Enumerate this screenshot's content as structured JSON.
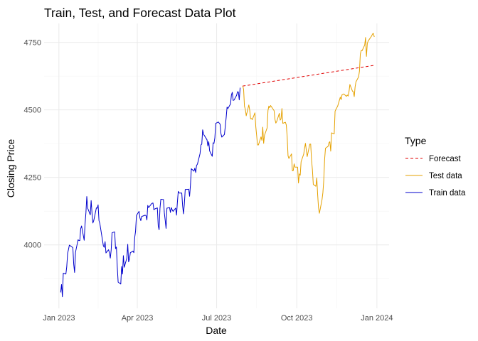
{
  "chart_data": {
    "type": "line",
    "title": "Train, Test, and Forecast Data Plot",
    "xlabel": "Date",
    "ylabel": "Closing Price",
    "x_type": "date",
    "xlim": [
      "2022-12-15",
      "2024-01-15"
    ],
    "ylim": [
      3765,
      4820
    ],
    "x_ticks": [
      {
        "value": "2023-01-01",
        "label": "Jan 2023"
      },
      {
        "value": "2023-04-01",
        "label": "Apr 2023"
      },
      {
        "value": "2023-07-01",
        "label": "Jul 2023"
      },
      {
        "value": "2023-10-01",
        "label": "Oct 2023"
      },
      {
        "value": "2024-01-01",
        "label": "Jan 2024"
      }
    ],
    "x_minor": [
      "2023-02-15",
      "2023-05-16",
      "2023-08-16",
      "2023-11-16"
    ],
    "y_ticks": [
      {
        "value": 4000,
        "label": "4000"
      },
      {
        "value": 4250,
        "label": "4250"
      },
      {
        "value": 4500,
        "label": "4500"
      },
      {
        "value": 4750,
        "label": "4750"
      }
    ],
    "y_minor": [
      3875,
      4125,
      4375,
      4625
    ],
    "grid": true,
    "legend": {
      "title": "Type",
      "placement": "right",
      "entries": [
        {
          "label": "Forecast",
          "color": "#e00000",
          "dash": "dashed"
        },
        {
          "label": "Test data",
          "color": "#e5a100",
          "dash": "solid"
        },
        {
          "label": "Train data",
          "color": "#0000cc",
          "dash": "solid"
        }
      ]
    },
    "series": [
      {
        "name": "Train data",
        "color": "#0000cc",
        "points": [
          [
            "2023-01-03",
            3824
          ],
          [
            "2023-01-04",
            3853
          ],
          [
            "2023-01-05",
            3808
          ],
          [
            "2023-01-06",
            3895
          ],
          [
            "2023-01-09",
            3892
          ],
          [
            "2023-01-10",
            3919
          ],
          [
            "2023-01-11",
            3969
          ],
          [
            "2023-01-12",
            3983
          ],
          [
            "2023-01-13",
            3999
          ],
          [
            "2023-01-17",
            3990
          ],
          [
            "2023-01-18",
            3928
          ],
          [
            "2023-01-19",
            3898
          ],
          [
            "2023-01-20",
            3972
          ],
          [
            "2023-01-23",
            4019
          ],
          [
            "2023-01-24",
            4016
          ],
          [
            "2023-01-25",
            4016
          ],
          [
            "2023-01-26",
            4060
          ],
          [
            "2023-01-27",
            4070
          ],
          [
            "2023-01-30",
            4017
          ],
          [
            "2023-01-31",
            4077
          ],
          [
            "2023-02-01",
            4119
          ],
          [
            "2023-02-02",
            4179
          ],
          [
            "2023-02-03",
            4136
          ],
          [
            "2023-02-06",
            4111
          ],
          [
            "2023-02-07",
            4164
          ],
          [
            "2023-02-08",
            4117
          ],
          [
            "2023-02-09",
            4081
          ],
          [
            "2023-02-10",
            4090
          ],
          [
            "2023-02-13",
            4137
          ],
          [
            "2023-02-14",
            4136
          ],
          [
            "2023-02-15",
            4148
          ],
          [
            "2023-02-16",
            4090
          ],
          [
            "2023-02-17",
            4079
          ],
          [
            "2023-02-21",
            3997
          ],
          [
            "2023-02-22",
            3991
          ],
          [
            "2023-02-23",
            4012
          ],
          [
            "2023-02-24",
            3970
          ],
          [
            "2023-02-27",
            3982
          ],
          [
            "2023-02-28",
            3970
          ],
          [
            "2023-03-01",
            3951
          ],
          [
            "2023-03-02",
            3981
          ],
          [
            "2023-03-03",
            4045
          ],
          [
            "2023-03-06",
            4048
          ],
          [
            "2023-03-07",
            3986
          ],
          [
            "2023-03-08",
            3992
          ],
          [
            "2023-03-09",
            3918
          ],
          [
            "2023-03-10",
            3862
          ],
          [
            "2023-03-13",
            3855
          ],
          [
            "2023-03-14",
            3920
          ],
          [
            "2023-03-15",
            3892
          ],
          [
            "2023-03-16",
            3960
          ],
          [
            "2023-03-17",
            3917
          ],
          [
            "2023-03-20",
            3951
          ],
          [
            "2023-03-21",
            4002
          ],
          [
            "2023-03-22",
            3937
          ],
          [
            "2023-03-23",
            3948
          ],
          [
            "2023-03-24",
            3971
          ],
          [
            "2023-03-27",
            3977
          ],
          [
            "2023-03-28",
            3971
          ],
          [
            "2023-03-29",
            4027
          ],
          [
            "2023-03-30",
            4051
          ],
          [
            "2023-03-31",
            4109
          ],
          [
            "2023-04-03",
            4124
          ],
          [
            "2023-04-04",
            4100
          ],
          [
            "2023-04-05",
            4090
          ],
          [
            "2023-04-06",
            4105
          ],
          [
            "2023-04-10",
            4110
          ],
          [
            "2023-04-11",
            4108
          ],
          [
            "2023-04-12",
            4092
          ],
          [
            "2023-04-13",
            4146
          ],
          [
            "2023-04-14",
            4138
          ],
          [
            "2023-04-17",
            4151
          ],
          [
            "2023-04-18",
            4154
          ],
          [
            "2023-04-19",
            4155
          ],
          [
            "2023-04-20",
            4130
          ],
          [
            "2023-04-21",
            4133
          ],
          [
            "2023-04-24",
            4137
          ],
          [
            "2023-04-25",
            4071
          ],
          [
            "2023-04-26",
            4056
          ],
          [
            "2023-04-27",
            4135
          ],
          [
            "2023-04-28",
            4169
          ],
          [
            "2023-05-01",
            4168
          ],
          [
            "2023-05-02",
            4119
          ],
          [
            "2023-05-03",
            4091
          ],
          [
            "2023-05-04",
            4061
          ],
          [
            "2023-05-05",
            4136
          ],
          [
            "2023-05-08",
            4138
          ],
          [
            "2023-05-09",
            4120
          ],
          [
            "2023-05-10",
            4138
          ],
          [
            "2023-05-11",
            4130
          ],
          [
            "2023-05-12",
            4124
          ],
          [
            "2023-05-15",
            4136
          ],
          [
            "2023-05-16",
            4110
          ],
          [
            "2023-05-17",
            4158
          ],
          [
            "2023-05-18",
            4198
          ],
          [
            "2023-05-19",
            4192
          ],
          [
            "2023-05-22",
            4192
          ],
          [
            "2023-05-23",
            4145
          ],
          [
            "2023-05-24",
            4115
          ],
          [
            "2023-05-25",
            4151
          ],
          [
            "2023-05-26",
            4205
          ],
          [
            "2023-05-30",
            4206
          ],
          [
            "2023-05-31",
            4180
          ],
          [
            "2023-06-01",
            4222
          ],
          [
            "2023-06-02",
            4282
          ],
          [
            "2023-06-05",
            4273
          ],
          [
            "2023-06-06",
            4284
          ],
          [
            "2023-06-07",
            4268
          ],
          [
            "2023-06-08",
            4294
          ],
          [
            "2023-06-09",
            4299
          ],
          [
            "2023-06-12",
            4338
          ],
          [
            "2023-06-13",
            4370
          ],
          [
            "2023-06-14",
            4373
          ],
          [
            "2023-06-15",
            4426
          ],
          [
            "2023-06-16",
            4410
          ],
          [
            "2023-06-20",
            4389
          ],
          [
            "2023-06-21",
            4366
          ],
          [
            "2023-06-22",
            4382
          ],
          [
            "2023-06-23",
            4348
          ],
          [
            "2023-06-26",
            4328
          ],
          [
            "2023-06-27",
            4378
          ],
          [
            "2023-06-28",
            4376
          ],
          [
            "2023-06-29",
            4396
          ],
          [
            "2023-06-30",
            4450
          ],
          [
            "2023-07-03",
            4455
          ],
          [
            "2023-07-05",
            4447
          ],
          [
            "2023-07-06",
            4412
          ],
          [
            "2023-07-07",
            4399
          ],
          [
            "2023-07-10",
            4409
          ],
          [
            "2023-07-11",
            4439
          ],
          [
            "2023-07-12",
            4472
          ],
          [
            "2023-07-13",
            4510
          ],
          [
            "2023-07-14",
            4505
          ],
          [
            "2023-07-17",
            4522
          ],
          [
            "2023-07-18",
            4555
          ],
          [
            "2023-07-19",
            4565
          ],
          [
            "2023-07-20",
            4535
          ],
          [
            "2023-07-21",
            4536
          ],
          [
            "2023-07-24",
            4554
          ],
          [
            "2023-07-25",
            4567
          ],
          [
            "2023-07-26",
            4566
          ],
          [
            "2023-07-27",
            4537
          ],
          [
            "2023-07-28",
            4582
          ]
        ]
      },
      {
        "name": "Test data",
        "color": "#e5a100",
        "points": [
          [
            "2023-07-31",
            4589
          ],
          [
            "2023-08-01",
            4576
          ],
          [
            "2023-08-02",
            4513
          ],
          [
            "2023-08-03",
            4502
          ],
          [
            "2023-08-04",
            4478
          ],
          [
            "2023-08-07",
            4518
          ],
          [
            "2023-08-08",
            4499
          ],
          [
            "2023-08-09",
            4467
          ],
          [
            "2023-08-10",
            4468
          ],
          [
            "2023-08-11",
            4464
          ],
          [
            "2023-08-14",
            4489
          ],
          [
            "2023-08-15",
            4437
          ],
          [
            "2023-08-16",
            4404
          ],
          [
            "2023-08-17",
            4370
          ],
          [
            "2023-08-18",
            4370
          ],
          [
            "2023-08-21",
            4400
          ],
          [
            "2023-08-22",
            4387
          ],
          [
            "2023-08-23",
            4436
          ],
          [
            "2023-08-24",
            4376
          ],
          [
            "2023-08-25",
            4406
          ],
          [
            "2023-08-28",
            4433
          ],
          [
            "2023-08-29",
            4498
          ],
          [
            "2023-08-30",
            4514
          ],
          [
            "2023-08-31",
            4508
          ],
          [
            "2023-09-01",
            4516
          ],
          [
            "2023-09-05",
            4497
          ],
          [
            "2023-09-06",
            4465
          ],
          [
            "2023-09-07",
            4451
          ],
          [
            "2023-09-08",
            4457
          ],
          [
            "2023-09-11",
            4487
          ],
          [
            "2023-09-12",
            4462
          ],
          [
            "2023-09-13",
            4467
          ],
          [
            "2023-09-14",
            4505
          ],
          [
            "2023-09-15",
            4450
          ],
          [
            "2023-09-18",
            4454
          ],
          [
            "2023-09-19",
            4444
          ],
          [
            "2023-09-20",
            4402
          ],
          [
            "2023-09-21",
            4330
          ],
          [
            "2023-09-22",
            4320
          ],
          [
            "2023-09-25",
            4337
          ],
          [
            "2023-09-26",
            4274
          ],
          [
            "2023-09-27",
            4275
          ],
          [
            "2023-09-28",
            4300
          ],
          [
            "2023-09-29",
            4288
          ],
          [
            "2023-10-02",
            4288
          ],
          [
            "2023-10-03",
            4229
          ],
          [
            "2023-10-04",
            4263
          ],
          [
            "2023-10-05",
            4258
          ],
          [
            "2023-10-06",
            4308
          ],
          [
            "2023-10-09",
            4336
          ],
          [
            "2023-10-10",
            4358
          ],
          [
            "2023-10-11",
            4376
          ],
          [
            "2023-10-12",
            4350
          ],
          [
            "2023-10-13",
            4327
          ],
          [
            "2023-10-16",
            4373
          ],
          [
            "2023-10-17",
            4373
          ],
          [
            "2023-10-18",
            4314
          ],
          [
            "2023-10-19",
            4278
          ],
          [
            "2023-10-20",
            4224
          ],
          [
            "2023-10-23",
            4217
          ],
          [
            "2023-10-24",
            4248
          ],
          [
            "2023-10-25",
            4186
          ],
          [
            "2023-10-26",
            4137
          ],
          [
            "2023-10-27",
            4117
          ],
          [
            "2023-10-30",
            4167
          ],
          [
            "2023-10-31",
            4193
          ],
          [
            "2023-11-01",
            4238
          ],
          [
            "2023-11-02",
            4317
          ],
          [
            "2023-11-03",
            4358
          ],
          [
            "2023-11-06",
            4365
          ],
          [
            "2023-11-07",
            4378
          ],
          [
            "2023-11-08",
            4382
          ],
          [
            "2023-11-09",
            4347
          ],
          [
            "2023-11-10",
            4415
          ],
          [
            "2023-11-13",
            4411
          ],
          [
            "2023-11-14",
            4495
          ],
          [
            "2023-11-15",
            4502
          ],
          [
            "2023-11-16",
            4508
          ],
          [
            "2023-11-17",
            4514
          ],
          [
            "2023-11-20",
            4547
          ],
          [
            "2023-11-21",
            4538
          ],
          [
            "2023-11-22",
            4556
          ],
          [
            "2023-11-24",
            4559
          ],
          [
            "2023-11-27",
            4550
          ],
          [
            "2023-11-28",
            4555
          ],
          [
            "2023-11-29",
            4551
          ],
          [
            "2023-11-30",
            4568
          ],
          [
            "2023-12-01",
            4594
          ],
          [
            "2023-12-04",
            4569
          ],
          [
            "2023-12-05",
            4567
          ],
          [
            "2023-12-06",
            4549
          ],
          [
            "2023-12-07",
            4585
          ],
          [
            "2023-12-08",
            4604
          ],
          [
            "2023-12-11",
            4622
          ],
          [
            "2023-12-12",
            4644
          ],
          [
            "2023-12-13",
            4707
          ],
          [
            "2023-12-14",
            4720
          ],
          [
            "2023-12-15",
            4719
          ],
          [
            "2023-12-18",
            4740
          ],
          [
            "2023-12-19",
            4768
          ],
          [
            "2023-12-20",
            4698
          ],
          [
            "2023-12-21",
            4746
          ],
          [
            "2023-12-22",
            4755
          ],
          [
            "2023-12-26",
            4774
          ],
          [
            "2023-12-27",
            4781
          ],
          [
            "2023-12-28",
            4783
          ],
          [
            "2023-12-29",
            4770
          ]
        ]
      },
      {
        "name": "Forecast",
        "color": "#e00000",
        "dash": "dashed",
        "points": [
          [
            "2023-07-31",
            4588
          ],
          [
            "2023-12-29",
            4665
          ]
        ]
      }
    ]
  }
}
